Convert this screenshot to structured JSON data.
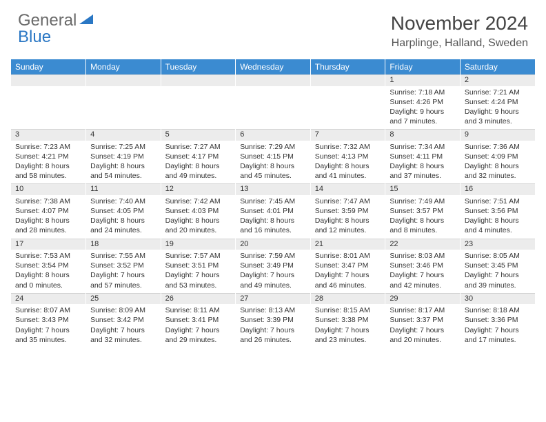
{
  "logo": {
    "word1": "General",
    "word2": "Blue"
  },
  "title": "November 2024",
  "location": "Harplinge, Halland, Sweden",
  "colors": {
    "header_bg": "#3b8bd1",
    "header_text": "#ffffff",
    "daynum_bg": "#ececec",
    "text": "#333333",
    "logo_gray": "#6a6a6a",
    "logo_blue": "#2a77c4"
  },
  "weekdays": [
    "Sunday",
    "Monday",
    "Tuesday",
    "Wednesday",
    "Thursday",
    "Friday",
    "Saturday"
  ],
  "weeks": [
    [
      null,
      null,
      null,
      null,
      null,
      {
        "n": "1",
        "sr": "7:18 AM",
        "ss": "4:26 PM",
        "dl": "9 hours and 7 minutes."
      },
      {
        "n": "2",
        "sr": "7:21 AM",
        "ss": "4:24 PM",
        "dl": "9 hours and 3 minutes."
      }
    ],
    [
      {
        "n": "3",
        "sr": "7:23 AM",
        "ss": "4:21 PM",
        "dl": "8 hours and 58 minutes."
      },
      {
        "n": "4",
        "sr": "7:25 AM",
        "ss": "4:19 PM",
        "dl": "8 hours and 54 minutes."
      },
      {
        "n": "5",
        "sr": "7:27 AM",
        "ss": "4:17 PM",
        "dl": "8 hours and 49 minutes."
      },
      {
        "n": "6",
        "sr": "7:29 AM",
        "ss": "4:15 PM",
        "dl": "8 hours and 45 minutes."
      },
      {
        "n": "7",
        "sr": "7:32 AM",
        "ss": "4:13 PM",
        "dl": "8 hours and 41 minutes."
      },
      {
        "n": "8",
        "sr": "7:34 AM",
        "ss": "4:11 PM",
        "dl": "8 hours and 37 minutes."
      },
      {
        "n": "9",
        "sr": "7:36 AM",
        "ss": "4:09 PM",
        "dl": "8 hours and 32 minutes."
      }
    ],
    [
      {
        "n": "10",
        "sr": "7:38 AM",
        "ss": "4:07 PM",
        "dl": "8 hours and 28 minutes."
      },
      {
        "n": "11",
        "sr": "7:40 AM",
        "ss": "4:05 PM",
        "dl": "8 hours and 24 minutes."
      },
      {
        "n": "12",
        "sr": "7:42 AM",
        "ss": "4:03 PM",
        "dl": "8 hours and 20 minutes."
      },
      {
        "n": "13",
        "sr": "7:45 AM",
        "ss": "4:01 PM",
        "dl": "8 hours and 16 minutes."
      },
      {
        "n": "14",
        "sr": "7:47 AM",
        "ss": "3:59 PM",
        "dl": "8 hours and 12 minutes."
      },
      {
        "n": "15",
        "sr": "7:49 AM",
        "ss": "3:57 PM",
        "dl": "8 hours and 8 minutes."
      },
      {
        "n": "16",
        "sr": "7:51 AM",
        "ss": "3:56 PM",
        "dl": "8 hours and 4 minutes."
      }
    ],
    [
      {
        "n": "17",
        "sr": "7:53 AM",
        "ss": "3:54 PM",
        "dl": "8 hours and 0 minutes."
      },
      {
        "n": "18",
        "sr": "7:55 AM",
        "ss": "3:52 PM",
        "dl": "7 hours and 57 minutes."
      },
      {
        "n": "19",
        "sr": "7:57 AM",
        "ss": "3:51 PM",
        "dl": "7 hours and 53 minutes."
      },
      {
        "n": "20",
        "sr": "7:59 AM",
        "ss": "3:49 PM",
        "dl": "7 hours and 49 minutes."
      },
      {
        "n": "21",
        "sr": "8:01 AM",
        "ss": "3:47 PM",
        "dl": "7 hours and 46 minutes."
      },
      {
        "n": "22",
        "sr": "8:03 AM",
        "ss": "3:46 PM",
        "dl": "7 hours and 42 minutes."
      },
      {
        "n": "23",
        "sr": "8:05 AM",
        "ss": "3:45 PM",
        "dl": "7 hours and 39 minutes."
      }
    ],
    [
      {
        "n": "24",
        "sr": "8:07 AM",
        "ss": "3:43 PM",
        "dl": "7 hours and 35 minutes."
      },
      {
        "n": "25",
        "sr": "8:09 AM",
        "ss": "3:42 PM",
        "dl": "7 hours and 32 minutes."
      },
      {
        "n": "26",
        "sr": "8:11 AM",
        "ss": "3:41 PM",
        "dl": "7 hours and 29 minutes."
      },
      {
        "n": "27",
        "sr": "8:13 AM",
        "ss": "3:39 PM",
        "dl": "7 hours and 26 minutes."
      },
      {
        "n": "28",
        "sr": "8:15 AM",
        "ss": "3:38 PM",
        "dl": "7 hours and 23 minutes."
      },
      {
        "n": "29",
        "sr": "8:17 AM",
        "ss": "3:37 PM",
        "dl": "7 hours and 20 minutes."
      },
      {
        "n": "30",
        "sr": "8:18 AM",
        "ss": "3:36 PM",
        "dl": "7 hours and 17 minutes."
      }
    ]
  ],
  "labels": {
    "sunrise": "Sunrise:",
    "sunset": "Sunset:",
    "daylight": "Daylight:"
  }
}
